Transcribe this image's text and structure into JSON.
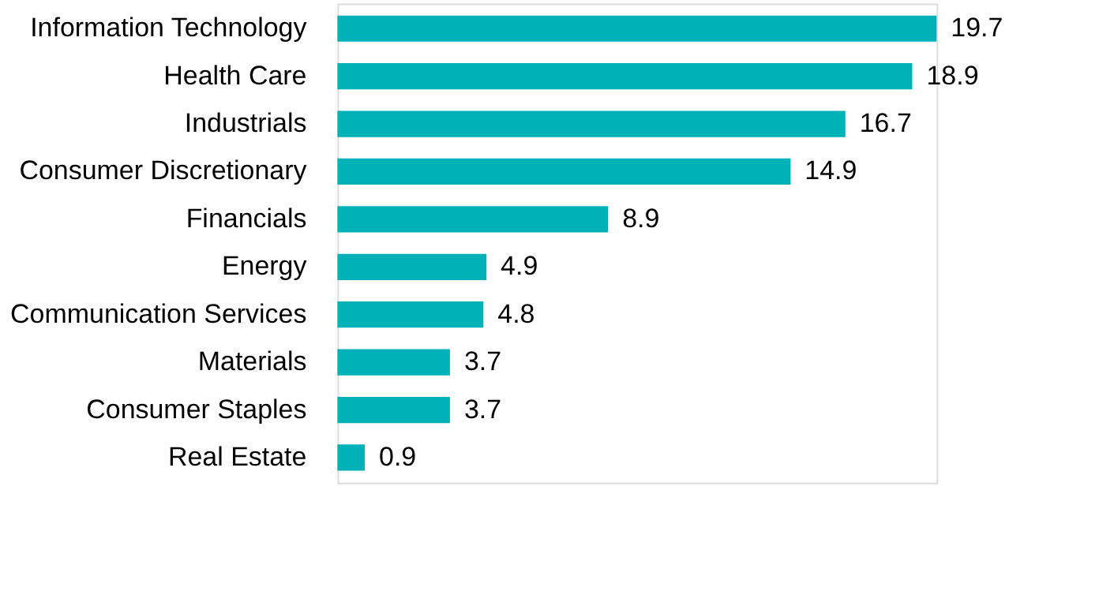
{
  "chart_data": {
    "type": "bar",
    "orientation": "horizontal",
    "categories": [
      "Information Technology",
      "Health Care",
      "Industrials",
      "Consumer Discretionary",
      "Financials",
      "Energy",
      "Communication Services",
      "Materials",
      "Consumer Staples",
      "Real Estate"
    ],
    "values": [
      19.7,
      18.9,
      16.7,
      14.9,
      8.9,
      4.9,
      4.8,
      3.7,
      3.7,
      0.9
    ],
    "color": "#00b2b8",
    "data_labels": true,
    "grid": false
  }
}
